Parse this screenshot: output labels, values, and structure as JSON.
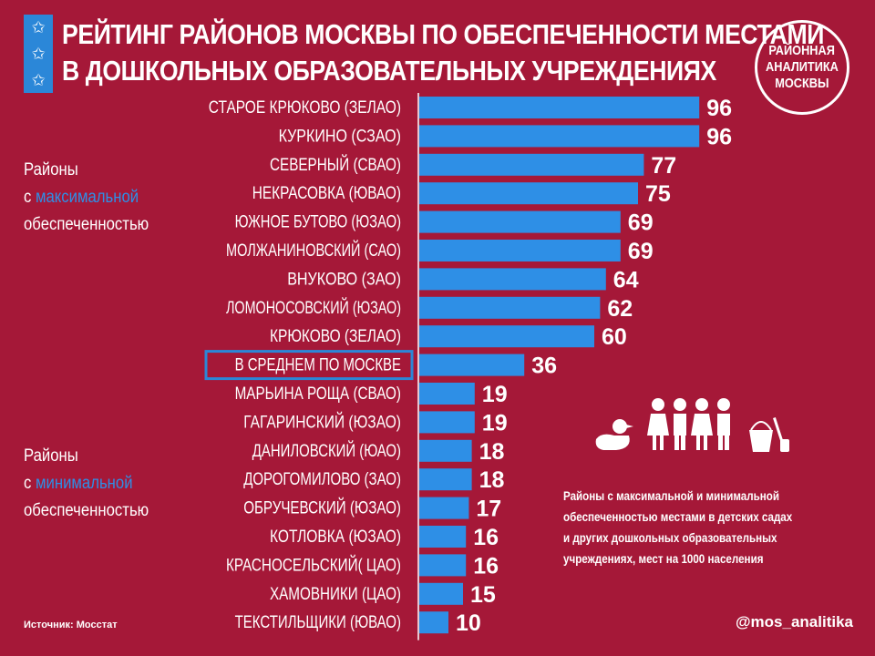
{
  "header": {
    "title_line1": "РЕЙТИНГ РАЙОНОВ МОСКВЫ ПО ОБЕСПЕЧЕННОСТИ МЕСТАМИ",
    "title_line2": "В ДОШКОЛЬНЫХ ОБРАЗОВАТЕЛЬНЫХ УЧРЕЖДЕНИЯХ",
    "star_glyph": "✩",
    "logo_line1": "РАЙОННАЯ",
    "logo_line2": "АНАЛИТИКА",
    "logo_line3": "МОСКВЫ"
  },
  "groups": {
    "max_line1": "Районы",
    "max_line2_prefix": "с ",
    "max_line2_highlight": "максимальной",
    "max_line3": "обеспеченностью",
    "min_line1": "Районы",
    "min_line2_prefix": "с ",
    "min_line2_highlight": "минимальной",
    "min_line3": "обеспеченностью"
  },
  "note": {
    "line1": "Районы с максимальной и минимальной",
    "line2": "обеспеченностью местами в детских садах",
    "line3": "и других дошкольных образовательных",
    "line4": "учреждениях, мест на 1000 населения"
  },
  "footer": {
    "source": "Источник: Мосстат",
    "handle": "@mos_analitika"
  },
  "colors": {
    "background": "#a51838",
    "bar": "#2e8fe6",
    "text": "#ffffff",
    "highlight_box": "#2b87d8"
  },
  "chart_data": {
    "type": "bar",
    "orientation": "horizontal",
    "title": "РЕЙТИНГ РАЙОНОВ МОСКВЫ ПО ОБЕСПЕЧЕННОСТИ МЕСТАМИ В ДОШКОЛЬНЫХ ОБРАЗОВАТЕЛЬНЫХ УЧРЕЖДЕНИЯХ",
    "unit": "мест на 1000 населения",
    "categories": [
      "СТАРОЕ КРЮКОВО (ЗЕЛАО)",
      "КУРКИНО (СЗАО)",
      "СЕВЕРНЫЙ (СВАО)",
      "НЕКРАСОВКА (ЮВАО)",
      "ЮЖНОЕ БУТОВО (ЮЗАО)",
      "МОЛЖАНИНОВСКИЙ (САО)",
      "ВНУКОВО (ЗАО)",
      "ЛОМОНОСОВСКИЙ (ЮЗАО)",
      "КРЮКОВО (ЗЕЛАО)",
      "В СРЕДНЕМ ПО МОСКВЕ",
      "МАРЬИНА РОЩА (СВАО)",
      "ГАГАРИНСКИЙ (ЮЗАО)",
      "ДАНИЛОВСКИЙ (ЮАО)",
      "ДОРОГОМИЛОВО (ЗАО)",
      "ОБРУЧЕВСКИЙ (ЮЗАО)",
      "КОТЛОВКА (ЮЗАО)",
      "КРАСНОСЕЛЬСКИЙ( ЦАО)",
      "ХАМОВНИКИ (ЦАО)",
      "ТЕКСТИЛЬЩИКИ (ЮВАО)"
    ],
    "values": [
      96,
      96,
      77,
      75,
      69,
      69,
      64,
      62,
      60,
      36,
      19,
      19,
      18,
      18,
      17,
      16,
      16,
      15,
      10
    ],
    "highlight_index": 9,
    "xlim": [
      0,
      100
    ]
  }
}
